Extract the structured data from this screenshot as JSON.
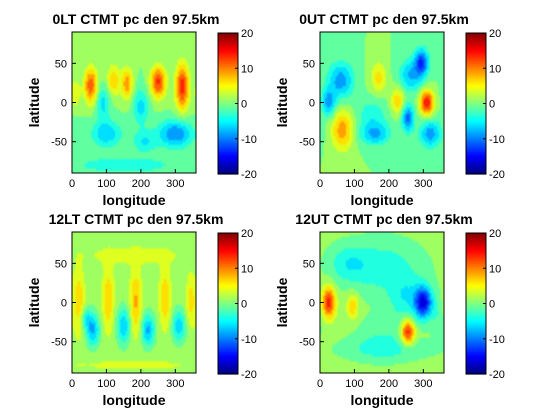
{
  "chart_data": [
    {
      "type": "heatmap",
      "title": "0LT CTMT pc den 97.5km",
      "xlabel": "longitude",
      "ylabel": "latitude",
      "xlim": [
        0,
        360
      ],
      "ylim": [
        -90,
        90
      ],
      "xticks": [
        0,
        100,
        200,
        300
      ],
      "yticks": [
        50,
        0,
        -50
      ],
      "clim": [
        -20,
        20
      ],
      "cticks": [
        20,
        10,
        0,
        -10,
        -20
      ],
      "colormap": "jet",
      "background_value": 0,
      "blobs": [
        {
          "lon": 55,
          "lat": 22,
          "amp": 12,
          "sx": 14,
          "sy": 16
        },
        {
          "lon": 120,
          "lat": 28,
          "amp": 7,
          "sx": 14,
          "sy": 14
        },
        {
          "lon": 160,
          "lat": 24,
          "amp": 9,
          "sx": 12,
          "sy": 14
        },
        {
          "lon": 250,
          "lat": 26,
          "amp": 13,
          "sx": 16,
          "sy": 14
        },
        {
          "lon": 320,
          "lat": 20,
          "amp": 14,
          "sx": 14,
          "sy": 20
        },
        {
          "lon": 10,
          "lat": 12,
          "amp": 5,
          "sx": 10,
          "sy": 12
        },
        {
          "lon": 90,
          "lat": 0,
          "amp": -6,
          "sx": 14,
          "sy": 16
        },
        {
          "lon": 200,
          "lat": -5,
          "amp": -6,
          "sx": 16,
          "sy": 16
        },
        {
          "lon": 300,
          "lat": -40,
          "amp": -10,
          "sx": 35,
          "sy": 12
        },
        {
          "lon": 100,
          "lat": -40,
          "amp": -7,
          "sx": 30,
          "sy": 12
        },
        {
          "lon": 210,
          "lat": -50,
          "amp": -5,
          "sx": 25,
          "sy": 10
        },
        {
          "lon": 150,
          "lat": -80,
          "amp": -4,
          "sx": 120,
          "sy": 8
        }
      ]
    },
    {
      "type": "heatmap",
      "title": "0UT CTMT pc den 97.5km",
      "xlabel": "longitude",
      "ylabel": "latitude",
      "xlim": [
        0,
        360
      ],
      "ylim": [
        -90,
        90
      ],
      "xticks": [
        0,
        100,
        200,
        300
      ],
      "yticks": [
        50,
        0,
        -50
      ],
      "clim": [
        -20,
        20
      ],
      "cticks": [
        20,
        10,
        0,
        -10,
        -20
      ],
      "colormap": "jet",
      "background_value": 0,
      "blobs": [
        {
          "lon": 60,
          "lat": 28,
          "amp": -9,
          "sx": 26,
          "sy": 16
        },
        {
          "lon": 170,
          "lat": 32,
          "amp": 6,
          "sx": 16,
          "sy": 14
        },
        {
          "lon": 265,
          "lat": 35,
          "amp": -8,
          "sx": 24,
          "sy": 14
        },
        {
          "lon": 295,
          "lat": 52,
          "amp": -12,
          "sx": 14,
          "sy": 12
        },
        {
          "lon": 225,
          "lat": 2,
          "amp": 7,
          "sx": 14,
          "sy": 12
        },
        {
          "lon": 310,
          "lat": 0,
          "amp": 15,
          "sx": 14,
          "sy": 11
        },
        {
          "lon": 25,
          "lat": 0,
          "amp": -9,
          "sx": 14,
          "sy": 12
        },
        {
          "lon": 65,
          "lat": -35,
          "amp": 9,
          "sx": 22,
          "sy": 18
        },
        {
          "lon": 160,
          "lat": -40,
          "amp": -8,
          "sx": 30,
          "sy": 10
        },
        {
          "lon": 255,
          "lat": -20,
          "amp": -11,
          "sx": 12,
          "sy": 12
        },
        {
          "lon": 320,
          "lat": -40,
          "amp": -9,
          "sx": 22,
          "sy": 12
        },
        {
          "lon": 150,
          "lat": -15,
          "amp": -4,
          "sx": 30,
          "sy": 14
        }
      ]
    },
    {
      "type": "heatmap",
      "title": "12LT CTMT pc den 97.5km",
      "xlabel": "longitude",
      "ylabel": "latitude",
      "xlim": [
        0,
        360
      ],
      "ylim": [
        -90,
        90
      ],
      "xticks": [
        0,
        100,
        200,
        300
      ],
      "yticks": [
        50,
        0,
        -50
      ],
      "clim": [
        -20,
        20
      ],
      "cticks": [
        20,
        10,
        0,
        -10,
        -20
      ],
      "colormap": "jet",
      "background_value": 1,
      "blobs": [
        {
          "lon": 20,
          "lat": 0,
          "amp": 6,
          "sx": 12,
          "sy": 30
        },
        {
          "lon": 105,
          "lat": 5,
          "amp": 6,
          "sx": 12,
          "sy": 30
        },
        {
          "lon": 185,
          "lat": 0,
          "amp": 7,
          "sx": 12,
          "sy": 30
        },
        {
          "lon": 270,
          "lat": 5,
          "amp": 6,
          "sx": 12,
          "sy": 28
        },
        {
          "lon": 345,
          "lat": 2,
          "amp": 5,
          "sx": 10,
          "sy": 24
        },
        {
          "lon": 60,
          "lat": -35,
          "amp": -9,
          "sx": 14,
          "sy": 14
        },
        {
          "lon": 150,
          "lat": -30,
          "amp": -8,
          "sx": 14,
          "sy": 16
        },
        {
          "lon": 220,
          "lat": -35,
          "amp": -9,
          "sx": 14,
          "sy": 14
        },
        {
          "lon": 310,
          "lat": -30,
          "amp": -8,
          "sx": 14,
          "sy": 14
        },
        {
          "lon": 40,
          "lat": -20,
          "amp": -5,
          "sx": 12,
          "sy": 10
        },
        {
          "lon": 180,
          "lat": -80,
          "amp": 2,
          "sx": 180,
          "sy": 6
        },
        {
          "lon": 180,
          "lat": 60,
          "amp": 3,
          "sx": 100,
          "sy": 8
        }
      ]
    },
    {
      "type": "heatmap",
      "title": "12UT CTMT pc den 97.5km",
      "xlabel": "longitude",
      "ylabel": "latitude",
      "xlim": [
        0,
        360
      ],
      "ylim": [
        -90,
        90
      ],
      "xticks": [
        0,
        100,
        200,
        300
      ],
      "yticks": [
        50,
        0,
        -50
      ],
      "clim": [
        -20,
        20
      ],
      "cticks": [
        20,
        10,
        0,
        -10,
        -20
      ],
      "colormap": "jet",
      "background_value": 1,
      "blobs": [
        {
          "lon": 180,
          "lat": 45,
          "amp": -5,
          "sx": 80,
          "sy": 25
        },
        {
          "lon": 80,
          "lat": 50,
          "amp": -4,
          "sx": 40,
          "sy": 16
        },
        {
          "lon": 250,
          "lat": 5,
          "amp": -5,
          "sx": 35,
          "sy": 20
        },
        {
          "lon": 300,
          "lat": 0,
          "amp": -16,
          "sx": 18,
          "sy": 14
        },
        {
          "lon": 25,
          "lat": 0,
          "amp": 13,
          "sx": 14,
          "sy": 14
        },
        {
          "lon": 95,
          "lat": -5,
          "amp": 6,
          "sx": 12,
          "sy": 12
        },
        {
          "lon": 255,
          "lat": -38,
          "amp": 14,
          "sx": 14,
          "sy": 11
        },
        {
          "lon": 180,
          "lat": -45,
          "amp": -3,
          "sx": 60,
          "sy": 20
        },
        {
          "lon": 345,
          "lat": -20,
          "amp": -3,
          "sx": 15,
          "sy": 20
        },
        {
          "lon": 190,
          "lat": -60,
          "amp": -3,
          "sx": 100,
          "sy": 10
        }
      ]
    }
  ]
}
